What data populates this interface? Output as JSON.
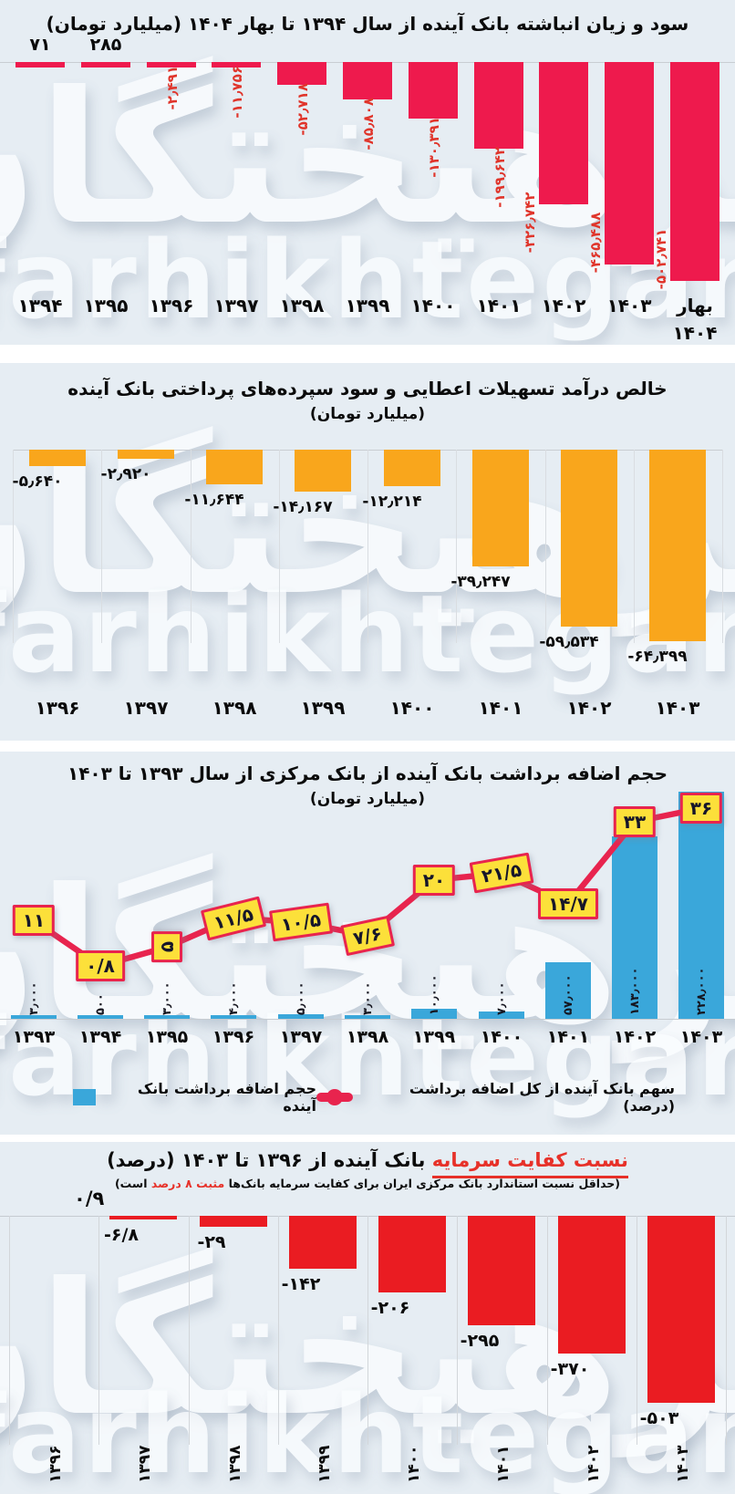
{
  "watermark": {
    "fa": "فرهیختگان",
    "en": "farhikhtegan"
  },
  "colors": {
    "background": "#e6edf3",
    "chart1_bar": "#ee1a4d",
    "chart1_label": "#e0352b",
    "chart2_bar": "#f9a61c",
    "chart3_bar": "#3aa7da",
    "chart3_line": "#e8244e",
    "chart3_box_bg": "#fce03a",
    "chart4_bar": "#ea1c22",
    "text": "#0b0b0b"
  },
  "chart_data": [
    {
      "id": "accumulated-profit-loss",
      "type": "bar",
      "title": "سود و زیان انباشته بانک آینده از سال ۱۳۹۴ تا بهار ۱۴۰۴ (میلیارد تومان)",
      "unit": "میلیارد تومان",
      "categories": [
        "۱۳۹۴",
        "۱۳۹۵",
        "۱۳۹۶",
        "۱۳۹۷",
        "۱۳۹۸",
        "۱۳۹۹",
        "۱۴۰۰",
        "۱۴۰۱",
        "۱۴۰۲",
        "۱۴۰۳",
        "بهار\n۱۴۰۴"
      ],
      "values": [
        71,
        285,
        -2491,
        -11756,
        -52718,
        -85808,
        -130391,
        -199642,
        -326742,
        -465488,
        -502741
      ],
      "value_labels": [
        "۷۱",
        "۲۸۵",
        "-۲٫۴۹۱",
        "-۱۱٫۷۵۶",
        "-۵۲٫۷۱۸",
        "-۸۵٫۸۰۸",
        "-۱۳۰٫۳۹۱",
        "-۱۹۹٫۶۴۲",
        "-۳۲۶٫۷۴۲",
        "-۴۶۵٫۴۸۸",
        "-۵۰۲٫۷۴۱"
      ],
      "ylim": [
        -510000,
        20000
      ],
      "grid": false
    },
    {
      "id": "net-interest-income",
      "type": "bar",
      "title": "خالص درآمد تسهیلات اعطایی و سود سپرده‌های پرداختی بانک آینده",
      "subtitle": "(میلیارد تومان)",
      "categories": [
        "۱۳۹۶",
        "۱۳۹۷",
        "۱۳۹۸",
        "۱۳۹۹",
        "۱۴۰۰",
        "۱۴۰۱",
        "۱۴۰۲",
        "۱۴۰۳"
      ],
      "values": [
        -5640,
        -2920,
        -11644,
        -14167,
        -12214,
        -39247,
        -59534,
        -64399
      ],
      "value_labels": [
        "-۵٫۶۴۰",
        "-۲٫۹۲۰",
        "-۱۱٫۶۴۴",
        "-۱۴٫۱۶۷",
        "-۱۲٫۲۱۴",
        "-۳۹٫۲۴۷",
        "-۵۹٫۵۳۴",
        "-۶۴٫۳۹۹"
      ],
      "ylim": [
        -65000,
        0
      ],
      "grid": true
    },
    {
      "id": "central-bank-overdraft",
      "type": "bar+line",
      "title": "حجم اضافه برداشت بانک آینده از بانک مرکزی از سال ۱۳۹۳ تا ۱۴۰۳",
      "subtitle": "(میلیارد تومان)",
      "categories": [
        "۱۳۹۳",
        "۱۳۹۴",
        "۱۳۹۵",
        "۱۳۹۶",
        "۱۳۹۷",
        "۱۳۹۸",
        "۱۳۹۹",
        "۱۴۰۰",
        "۱۴۰۱",
        "۱۴۰۲",
        "۱۴۰۳"
      ],
      "series": [
        {
          "name": "حجم اضافه برداشت بانک آینده",
          "type": "bar",
          "values": [
            3000,
            500,
            3000,
            4000,
            5000,
            3000,
            10000,
            7000,
            57000,
            183000,
            228000
          ],
          "value_labels": [
            "۳٫۰۰۰",
            "۵۰۰",
            "۳٫۰۰۰",
            "۴٫۰۰۰",
            "۵٫۰۰۰",
            "۳٫۰۰۰",
            "۱۰٫۰۰۰",
            "۷٫۰۰۰",
            "۵۷٫۰۰۰",
            "۱۸۳٫۰۰۰",
            "۲۲۸٫۰۰۰"
          ],
          "ylim": [
            0,
            230000
          ]
        },
        {
          "name": "سهم بانک آینده از کل اضافه برداشت (درصد)",
          "type": "line",
          "values": [
            11,
            0.8,
            5,
            11.5,
            10.5,
            7.6,
            20,
            21.5,
            14.7,
            33,
            36
          ],
          "value_labels": [
            "۱۱",
            "۰/۸",
            "۵",
            "۱۱/۵",
            "۱۰/۵",
            "۷/۶",
            "۲۰",
            "۲۱/۵",
            "۱۴/۷",
            "۳۳",
            "۳۶"
          ],
          "ylim": [
            0,
            40
          ]
        }
      ],
      "legend_position": "bottom"
    },
    {
      "id": "capital-adequacy-ratio",
      "type": "bar",
      "title_red": "نسبت کفایت سرمایه",
      "title_rest": "بانک آینده از ۱۳۹۶ تا ۱۴۰۳ (درصد)",
      "subtitle_pre": "(حداقل نسبت استاندارد بانک مرکزی ایران برای کفایت سرمایه بانک‌ها ",
      "subtitle_red": "مثبت ۸ درصد",
      "subtitle_post": " است)",
      "categories": [
        "۱۳۹۶",
        "۱۳۹۷",
        "۱۳۹۸",
        "۱۳۹۹",
        "۱۴۰۰",
        "۱۴۰۱",
        "۱۴۰۲",
        "۱۴۰۳"
      ],
      "values": [
        0.9,
        -6.8,
        -29,
        -142,
        -206,
        -295,
        -370,
        -503
      ],
      "value_labels": [
        "۰/۹",
        "-۶/۸",
        "-۲۹",
        "-۱۴۲",
        "-۲۰۶",
        "-۲۹۵",
        "-۳۷۰",
        "-۵۰۳"
      ],
      "ylim": [
        -510,
        10
      ],
      "grid": true
    }
  ]
}
